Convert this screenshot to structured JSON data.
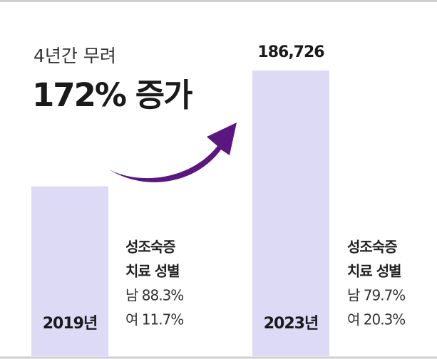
{
  "chart_data": {
    "type": "bar",
    "subtitle": "4년간 무려",
    "title": "172% 증가",
    "categories": [
      "2019년",
      "2023년"
    ],
    "values": [
      111000,
      186726
    ],
    "value_labels": [
      null,
      "186,726"
    ],
    "ylim": [
      0,
      200000
    ],
    "color": "#dcdaf5",
    "arrow_color": "#5b1780",
    "notes": [
      [
        "성조숙증",
        "치료 성별",
        "남 88.3%",
        "여 11.7%"
      ],
      [
        "성조숙증",
        "치료 성별",
        "남 79.7%",
        "여 20.3%"
      ]
    ]
  }
}
